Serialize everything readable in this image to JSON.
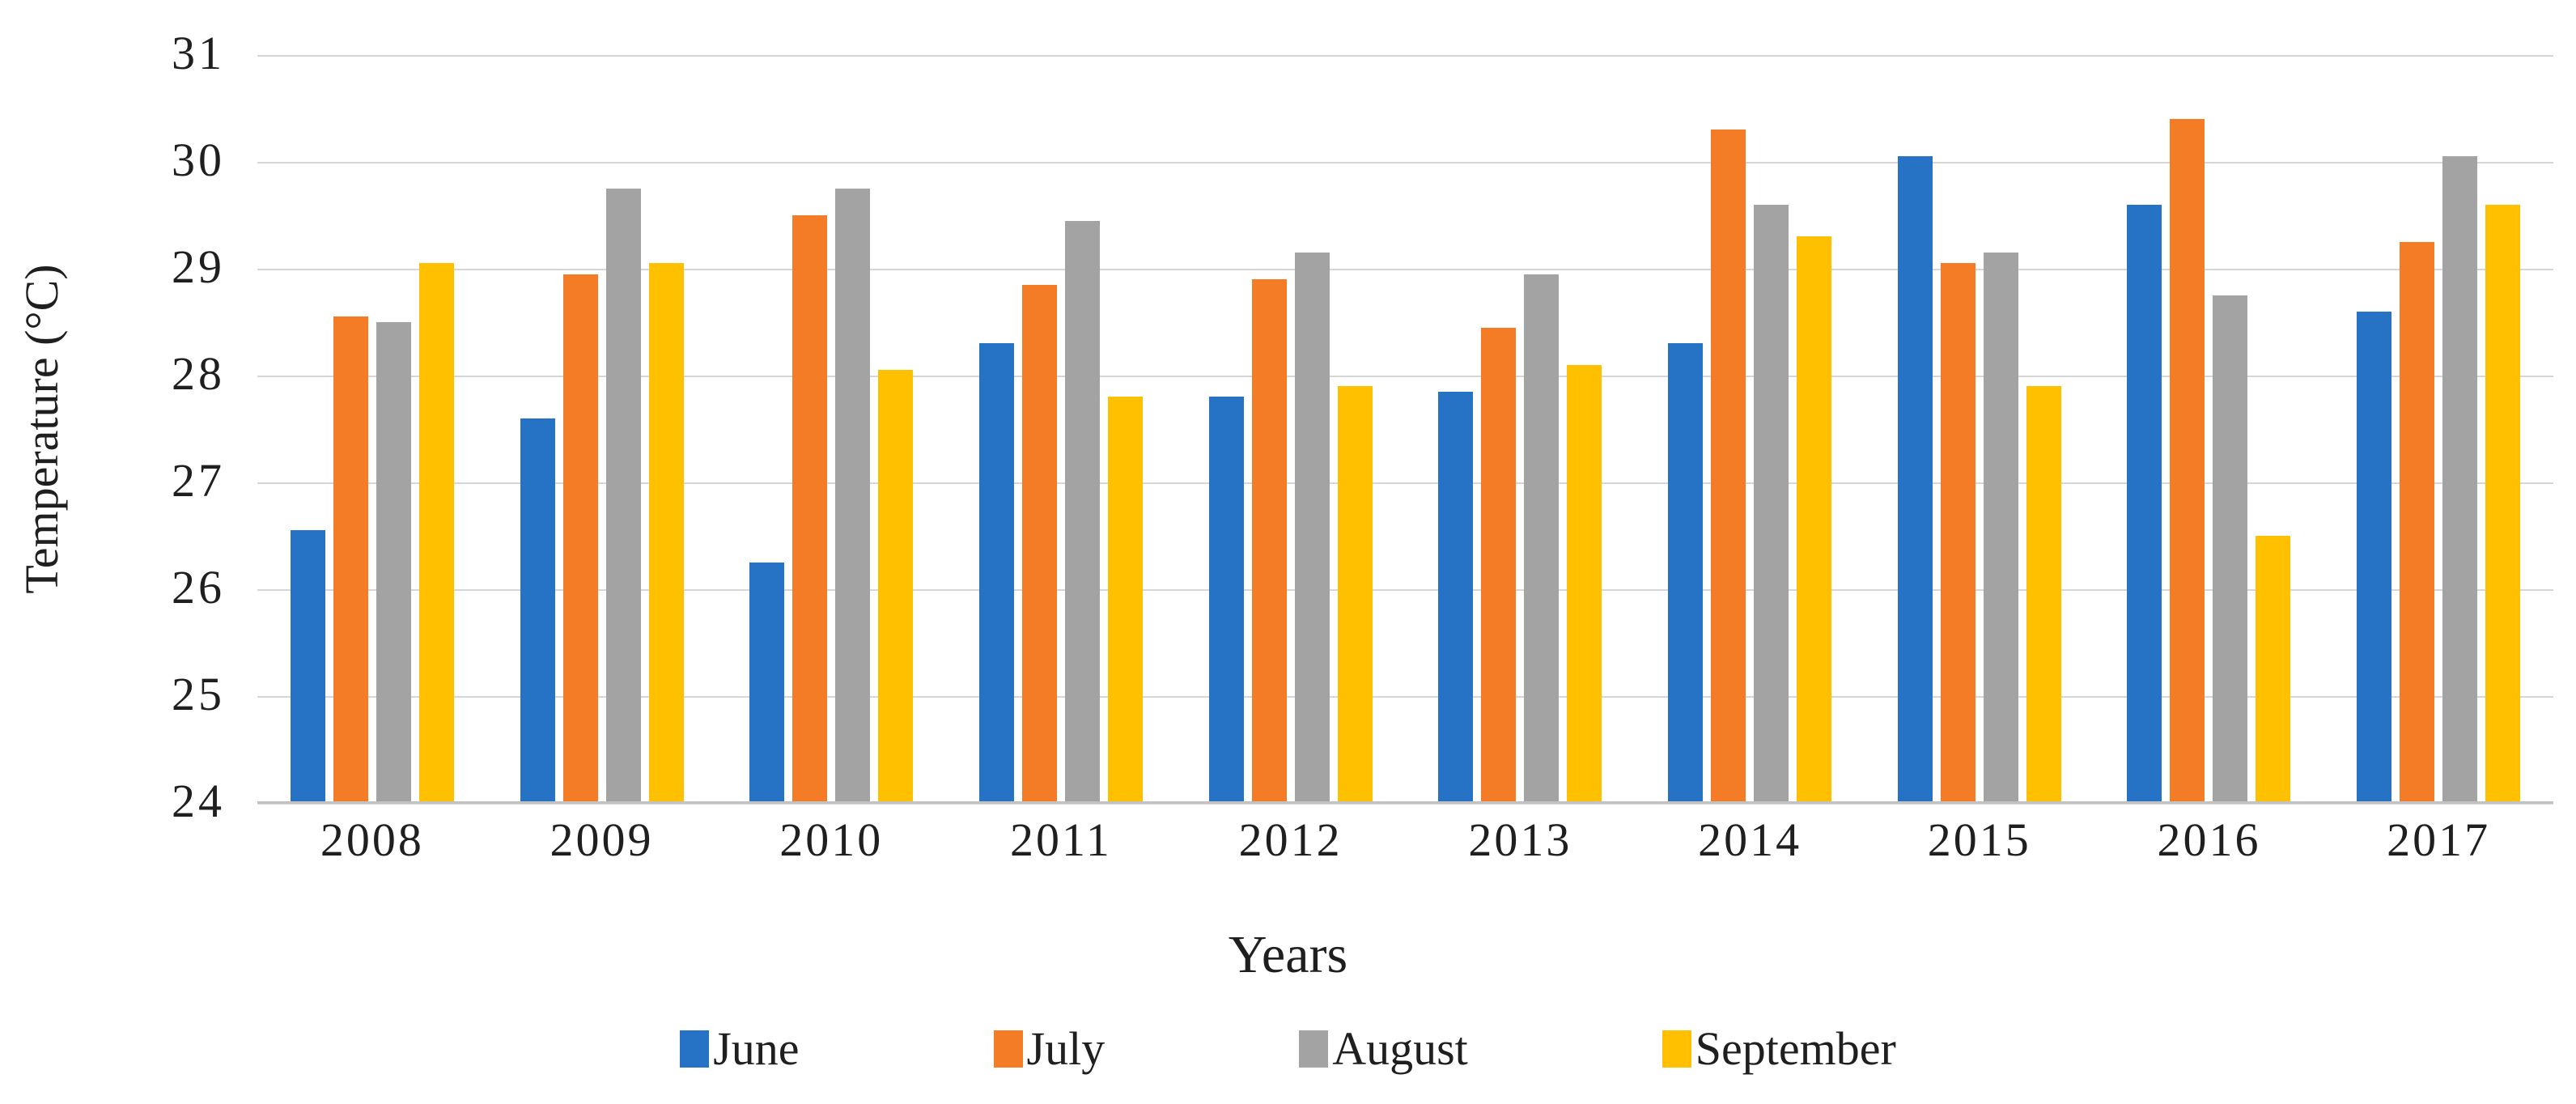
{
  "chart_data": {
    "type": "bar",
    "title": "",
    "xlabel": "Years",
    "ylabel": "Temperature (°C)",
    "ylim": [
      24,
      31
    ],
    "yticks": [
      31,
      30,
      29,
      28,
      27,
      26,
      25,
      24
    ],
    "grid": true,
    "legend_position": "bottom",
    "categories": [
      "2008",
      "2009",
      "2010",
      "2011",
      "2012",
      "2013",
      "2014",
      "2015",
      "2016",
      "2017"
    ],
    "series": [
      {
        "name": "June",
        "color": "#2673C5",
        "values": [
          26.55,
          27.6,
          26.25,
          28.3,
          27.8,
          27.85,
          28.3,
          30.05,
          29.6,
          28.6
        ]
      },
      {
        "name": "July",
        "color": "#F57C26",
        "values": [
          28.55,
          28.95,
          29.5,
          28.85,
          28.9,
          28.45,
          30.3,
          29.05,
          30.4,
          29.25
        ]
      },
      {
        "name": "August",
        "color": "#A3A3A3",
        "values": [
          28.5,
          29.75,
          29.75,
          29.45,
          29.15,
          28.95,
          29.6,
          29.15,
          28.75,
          30.05
        ]
      },
      {
        "name": "September",
        "color": "#FFC000",
        "values": [
          29.05,
          29.05,
          28.05,
          27.8,
          27.9,
          28.1,
          29.3,
          27.9,
          26.5,
          29.6
        ]
      }
    ]
  }
}
